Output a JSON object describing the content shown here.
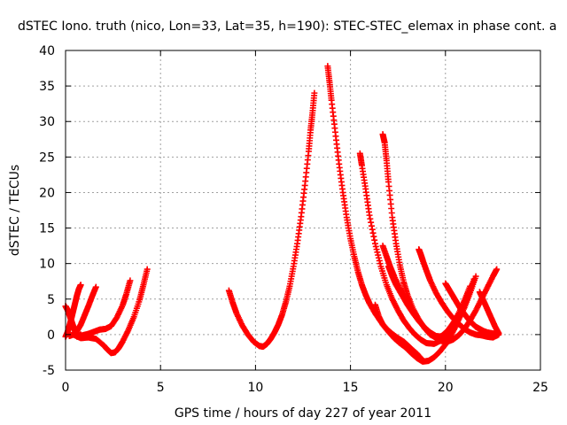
{
  "chart_data": {
    "type": "scatter",
    "title": "dSTEC Iono. truth (nico, Lon=33, Lat=35, h=190): STEC-STEC_elemax in phase cont. a",
    "xlabel": "GPS time / hours of day 227 of year 2011",
    "ylabel": "dSTEC  / TECUs",
    "xlim": [
      0,
      25
    ],
    "ylim": [
      -5,
      40
    ],
    "xticks": [
      0,
      5,
      10,
      15,
      20,
      25
    ],
    "yticks": [
      -5,
      0,
      5,
      10,
      15,
      20,
      25,
      30,
      35,
      40
    ],
    "grid": true,
    "marker": "+",
    "color": "#ff0000",
    "series": [
      {
        "x": [
          0.0,
          0.1,
          0.2,
          0.3,
          0.4,
          0.5,
          0.6,
          0.7,
          0.8
        ],
        "y": [
          4.0,
          3.5,
          2.8,
          2.0,
          1.2,
          0.5,
          0.0,
          -0.2,
          0.0
        ]
      },
      {
        "x": [
          0.0,
          0.1,
          0.2,
          0.3,
          0.4,
          0.5,
          0.6,
          0.7,
          0.8
        ],
        "y": [
          -0.3,
          0.3,
          1.2,
          2.2,
          3.3,
          4.4,
          5.5,
          6.4,
          7.0
        ]
      },
      {
        "x": [
          0.2,
          0.4,
          0.6,
          0.8,
          1.0,
          1.2,
          1.4,
          1.6
        ],
        "y": [
          -0.2,
          0.0,
          0.5,
          1.4,
          2.7,
          4.0,
          5.4,
          6.7
        ]
      },
      {
        "x": [
          0.6,
          0.9,
          1.2,
          1.5,
          1.8,
          2.1,
          2.4,
          2.7,
          3.0,
          3.2,
          3.4
        ],
        "y": [
          -0.3,
          -0.1,
          0.1,
          0.4,
          0.7,
          0.8,
          1.2,
          2.4,
          4.1,
          5.7,
          7.6
        ]
      },
      {
        "x": [
          0.4,
          0.8,
          1.2,
          1.6,
          2.0,
          2.2,
          2.4,
          2.6,
          2.8,
          3.0,
          3.3,
          3.6,
          3.9,
          4.1,
          4.3
        ],
        "y": [
          0.0,
          -0.5,
          -0.4,
          -0.6,
          -1.5,
          -2.1,
          -2.6,
          -2.5,
          -1.9,
          -1.0,
          0.6,
          2.5,
          4.9,
          7.0,
          9.2
        ]
      },
      {
        "x": [
          8.6,
          8.8,
          9.0,
          9.3,
          9.6,
          9.9,
          10.2,
          10.4,
          10.6,
          10.8,
          11.0,
          11.2,
          11.4,
          11.6,
          11.8,
          12.0,
          12.2,
          12.4,
          12.6,
          12.8,
          12.9,
          13.0,
          13.1
        ],
        "y": [
          6.2,
          4.5,
          3.0,
          1.3,
          0.0,
          -1.0,
          -1.6,
          -1.7,
          -1.3,
          -0.6,
          0.3,
          1.4,
          2.8,
          4.6,
          6.8,
          9.6,
          12.8,
          16.6,
          21.0,
          25.8,
          28.8,
          31.2,
          34.0
        ]
      },
      {
        "x": [
          13.8,
          13.9,
          14.0,
          14.2,
          14.4,
          14.6,
          14.8,
          15.0,
          15.2,
          15.4,
          15.6,
          15.8,
          16.0,
          16.3,
          16.6,
          16.9,
          17.2,
          17.5,
          17.8,
          18.0,
          18.2,
          18.5,
          18.8
        ],
        "y": [
          37.8,
          35.5,
          33.0,
          28.5,
          24.0,
          20.0,
          16.5,
          13.5,
          11.0,
          8.8,
          7.0,
          5.6,
          4.4,
          3.0,
          1.8,
          0.8,
          0.1,
          -0.5,
          -1.0,
          -1.5,
          -2.0,
          -2.7,
          -3.6
        ]
      },
      {
        "x": [
          15.5,
          15.6,
          15.8,
          16.0,
          16.3,
          16.6,
          16.9,
          17.2,
          17.5,
          17.8,
          18.1,
          18.4,
          18.7,
          19.0,
          19.4,
          19.8,
          20.2
        ],
        "y": [
          25.5,
          23.8,
          20.5,
          16.8,
          12.8,
          9.6,
          7.0,
          5.0,
          3.4,
          2.0,
          0.9,
          0.0,
          -0.7,
          -1.2,
          -1.3,
          -0.8,
          0.0
        ]
      },
      {
        "x": [
          16.3,
          16.5,
          16.7,
          17.0,
          17.3,
          17.6,
          17.9,
          18.2,
          18.5,
          18.8,
          19.1,
          19.4,
          19.7,
          20.0,
          20.3,
          20.6,
          20.9,
          21.2,
          21.5
        ],
        "y": [
          4.2,
          2.5,
          1.4,
          0.4,
          -0.5,
          -1.2,
          -1.8,
          -2.6,
          -3.3,
          -3.8,
          -3.7,
          -3.2,
          -2.4,
          -1.4,
          -0.1,
          1.5,
          3.4,
          5.5,
          7.8
        ]
      },
      {
        "x": [
          16.7,
          16.8,
          16.9,
          17.0,
          17.2,
          17.4,
          17.6,
          17.8,
          18.0,
          18.3,
          18.6,
          18.9,
          19.2,
          19.5,
          19.8,
          20.1,
          20.4,
          20.7,
          21.0,
          21.3
        ],
        "y": [
          28.2,
          27.0,
          24.5,
          21.5,
          16.5,
          12.8,
          9.8,
          7.4,
          5.6,
          3.6,
          2.1,
          0.9,
          0.0,
          -0.4,
          -0.2,
          0.5,
          1.6,
          3.0,
          4.8,
          6.8
        ]
      },
      {
        "x": [
          16.7,
          16.9,
          17.1,
          17.3,
          17.6,
          17.9,
          18.2,
          18.5,
          18.8,
          19.1,
          19.4,
          19.7,
          20.0,
          20.3,
          20.6,
          20.9,
          21.2
        ],
        "y": [
          12.5,
          11.0,
          9.5,
          8.2,
          6.5,
          5.0,
          3.6,
          2.4,
          1.3,
          0.4,
          -0.3,
          -0.5,
          -0.2,
          0.6,
          2.0,
          3.8,
          6.0
        ]
      },
      {
        "x": [
          17.0,
          17.2,
          17.4,
          17.7,
          18.0,
          18.3,
          18.6,
          18.9,
          19.2,
          19.5,
          19.8,
          20.1,
          20.4,
          20.7,
          21.0,
          21.3,
          21.6
        ],
        "y": [
          9.6,
          8.2,
          7.0,
          5.6,
          4.2,
          3.0,
          1.9,
          1.0,
          0.3,
          -0.2,
          -0.3,
          0.1,
          0.9,
          2.2,
          3.8,
          5.9,
          8.2
        ]
      },
      {
        "x": [
          18.6,
          18.7,
          18.8,
          19.0,
          19.2,
          19.5,
          19.8,
          20.1,
          20.4,
          20.7,
          21.0,
          21.3,
          21.6,
          21.9,
          22.2,
          22.5,
          22.8
        ],
        "y": [
          12.0,
          11.3,
          10.5,
          9.0,
          7.6,
          5.9,
          4.5,
          3.3,
          2.3,
          1.5,
          0.8,
          0.3,
          0.0,
          -0.1,
          -0.3,
          -0.4,
          0.0
        ]
      },
      {
        "x": [
          20.0,
          20.2,
          20.4,
          20.6,
          20.8,
          21.0,
          21.2,
          21.4,
          21.6,
          21.8,
          22.0,
          22.2,
          22.4,
          22.6,
          22.8
        ],
        "y": [
          7.2,
          6.3,
          5.4,
          4.5,
          3.6,
          2.9,
          2.2,
          1.6,
          1.1,
          0.8,
          0.5,
          0.3,
          0.2,
          0.1,
          0.2
        ]
      },
      {
        "x": [
          19.5,
          19.8,
          20.1,
          20.4,
          20.7,
          21.0,
          21.3,
          21.6,
          21.9,
          22.2,
          22.5,
          22.7
        ],
        "y": [
          -0.5,
          -0.9,
          -1.0,
          -0.7,
          -0.1,
          0.8,
          2.0,
          3.4,
          5.0,
          6.6,
          8.2,
          9.2
        ]
      },
      {
        "x": [
          21.8,
          22.0,
          22.2,
          22.4,
          22.6,
          22.8
        ],
        "y": [
          6.0,
          4.8,
          3.6,
          2.4,
          1.2,
          0.2
        ]
      }
    ]
  }
}
